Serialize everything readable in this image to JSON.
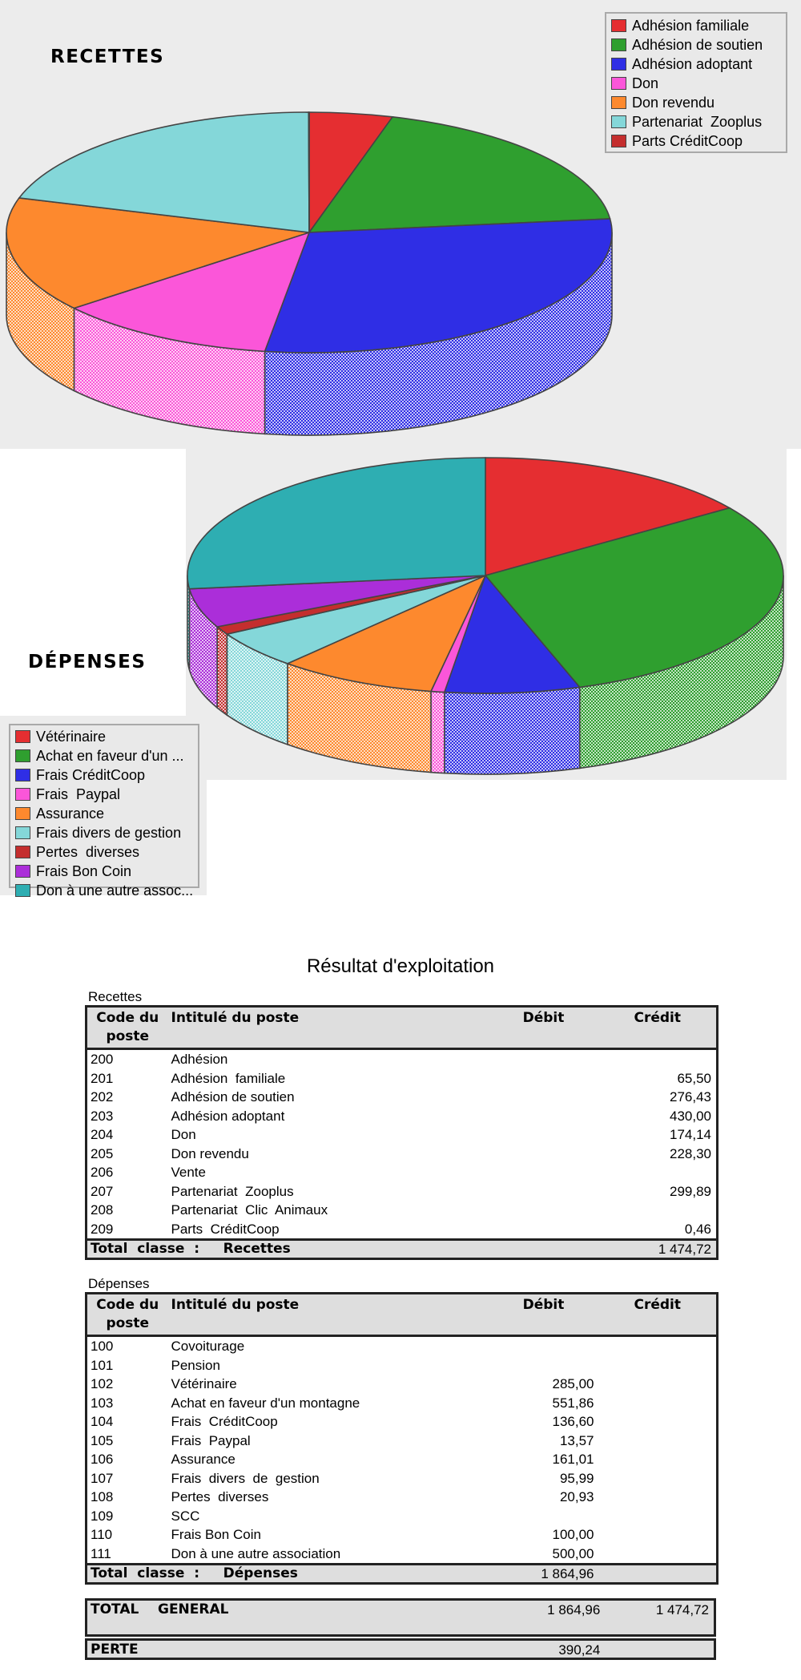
{
  "chart_data": [
    {
      "type": "pie",
      "title": "RECETTES",
      "legend_position": "top-right",
      "categories": [
        "Adhésion familiale",
        "Adhésion de soutien",
        "Adhésion adoptant",
        "Don",
        "Don revendu",
        "Partenariat  Zooplus",
        "Parts CréditCoop"
      ],
      "values": [
        65.5,
        276.43,
        430.0,
        174.14,
        228.3,
        299.89,
        0.46
      ],
      "colors": [
        "#e52e31",
        "#2f9f2f",
        "#2f2ee5",
        "#fb56d9",
        "#fd892e",
        "#84d7d9",
        "#c42e2e"
      ]
    },
    {
      "type": "pie",
      "title": "DÉPENSES",
      "legend_position": "bottom-left",
      "categories": [
        "Vétérinaire",
        "Achat en faveur d'un ...",
        "Frais CréditCoop",
        "Frais  Paypal",
        "Assurance",
        "Frais divers de gestion",
        "Pertes  diverses",
        "Frais Bon Coin",
        "Don à une autre assoc..."
      ],
      "values": [
        285.0,
        551.86,
        136.6,
        13.57,
        161.01,
        95.99,
        20.93,
        100.0,
        500.0
      ],
      "colors": [
        "#e52e31",
        "#2f9f2f",
        "#2f2ee5",
        "#fb56d9",
        "#fd892e",
        "#84d7d9",
        "#c42e2e",
        "#ab2ed9",
        "#2eaeb2"
      ]
    }
  ],
  "report": {
    "title": "Résultat  d'exploitation",
    "col_code": "Code du poste",
    "col_label": "Intitulé  du  poste",
    "col_debit": "Débit",
    "col_credit": "Crédit",
    "recettes": {
      "section": "Recettes",
      "rows": [
        {
          "code": "200",
          "label": "Adhésion",
          "debit": "",
          "credit": ""
        },
        {
          "code": "201",
          "label": "Adhésion  familiale",
          "debit": "",
          "credit": "65,50"
        },
        {
          "code": "202",
          "label": "Adhésion de soutien",
          "debit": "",
          "credit": "276,43"
        },
        {
          "code": "203",
          "label": "Adhésion adoptant",
          "debit": "",
          "credit": "430,00"
        },
        {
          "code": "204",
          "label": "Don",
          "debit": "",
          "credit": "174,14"
        },
        {
          "code": "205",
          "label": "Don revendu",
          "debit": "",
          "credit": "228,30"
        },
        {
          "code": "206",
          "label": "Vente",
          "debit": "",
          "credit": ""
        },
        {
          "code": "207",
          "label": "Partenariat  Zooplus",
          "debit": "",
          "credit": "299,89"
        },
        {
          "code": "208",
          "label": "Partenariat  Clic  Animaux",
          "debit": "",
          "credit": ""
        },
        {
          "code": "209",
          "label": "Parts  CréditCoop",
          "debit": "",
          "credit": "0,46"
        }
      ],
      "total_label": "Total  classe  :     Recettes",
      "total_debit": "",
      "total_credit": "1 474,72"
    },
    "depenses": {
      "section": "Dépenses",
      "rows": [
        {
          "code": "100",
          "label": "Covoiturage",
          "debit": "",
          "credit": ""
        },
        {
          "code": "101",
          "label": "Pension",
          "debit": "",
          "credit": ""
        },
        {
          "code": "102",
          "label": "Vétérinaire",
          "debit": "285,00",
          "credit": ""
        },
        {
          "code": "103",
          "label": "Achat en faveur d'un montagne",
          "debit": "551,86",
          "credit": ""
        },
        {
          "code": "104",
          "label": "Frais  CréditCoop",
          "debit": "136,60",
          "credit": ""
        },
        {
          "code": "105",
          "label": "Frais  Paypal",
          "debit": "13,57",
          "credit": ""
        },
        {
          "code": "106",
          "label": "Assurance",
          "debit": "161,01",
          "credit": ""
        },
        {
          "code": "107",
          "label": "Frais  divers  de  gestion",
          "debit": "95,99",
          "credit": ""
        },
        {
          "code": "108",
          "label": "Pertes  diverses",
          "debit": "20,93",
          "credit": ""
        },
        {
          "code": "109",
          "label": "SCC",
          "debit": "",
          "credit": ""
        },
        {
          "code": "110",
          "label": "Frais Bon Coin",
          "debit": "100,00",
          "credit": ""
        },
        {
          "code": "111",
          "label": "Don à une autre association",
          "debit": "500,00",
          "credit": ""
        }
      ],
      "total_label": "Total  classe  :     Dépenses",
      "total_debit": "1 864,96",
      "total_credit": ""
    },
    "total_general": {
      "label": "TOTAL    GENERAL",
      "debit": "1 864,96",
      "credit": "1 474,72"
    },
    "perte": {
      "label": "PERTE",
      "debit": "390,24"
    }
  }
}
